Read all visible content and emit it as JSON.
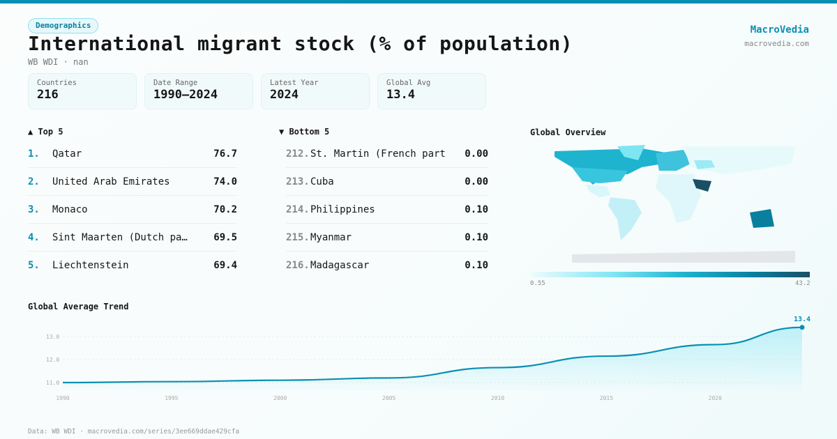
{
  "header": {
    "badge": "Demographics",
    "title": "International migrant stock (% of population)",
    "subtitle": "WB WDI · nan",
    "brand": "MacroVedia",
    "brand_url": "macrovedia.com"
  },
  "stats": [
    {
      "label": "Countries",
      "value": "216"
    },
    {
      "label": "Date Range",
      "value": "1990–2024"
    },
    {
      "label": "Latest Year",
      "value": "2024"
    },
    {
      "label": "Global Avg",
      "value": "13.4"
    }
  ],
  "top5": {
    "title": "▲ Top 5",
    "items": [
      {
        "rank": "1.",
        "name": "Qatar",
        "value": "76.7"
      },
      {
        "rank": "2.",
        "name": "United Arab Emirates",
        "value": "74.0"
      },
      {
        "rank": "3.",
        "name": "Monaco",
        "value": "70.2"
      },
      {
        "rank": "4.",
        "name": "Sint Maarten (Dutch pa…",
        "value": "69.5"
      },
      {
        "rank": "5.",
        "name": "Liechtenstein",
        "value": "69.4"
      }
    ]
  },
  "bottom5": {
    "title": "▼ Bottom 5",
    "items": [
      {
        "rank": "212.",
        "name": "St. Martin (French part)",
        "value": "0.00"
      },
      {
        "rank": "213.",
        "name": "Cuba",
        "value": "0.00"
      },
      {
        "rank": "214.",
        "name": "Philippines",
        "value": "0.10"
      },
      {
        "rank": "215.",
        "name": "Myanmar",
        "value": "0.10"
      },
      {
        "rank": "216.",
        "name": "Madagascar",
        "value": "0.10"
      }
    ]
  },
  "map": {
    "title": "Global Overview",
    "legend_min": "0.55",
    "legend_max": "43.2"
  },
  "footer": "Data: WB WDI · macrovedia.com/series/3ee669ddae429cfa",
  "chart_data": {
    "type": "area",
    "title": "Global Average Trend",
    "x": [
      1990,
      1995,
      2000,
      2005,
      2010,
      2015,
      2020,
      2024
    ],
    "values": [
      11.0,
      11.04,
      11.1,
      11.2,
      11.65,
      12.15,
      12.65,
      13.4
    ],
    "xticks": [
      "1990",
      "1995",
      "2000",
      "2005",
      "2010",
      "2015",
      "2020"
    ],
    "yticks": [
      "11.0",
      "12.0",
      "13.0"
    ],
    "ylim": [
      10.65,
      13.6
    ],
    "end_label": "13.4",
    "color": "#0a8fb3"
  }
}
